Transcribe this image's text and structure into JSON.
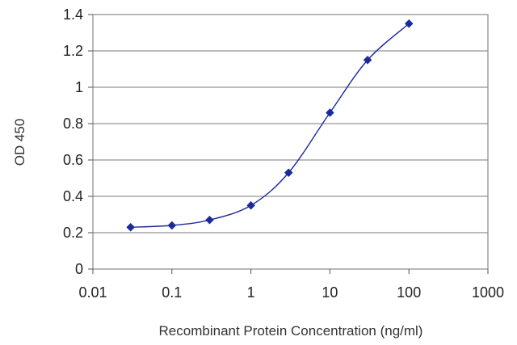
{
  "chart_data": {
    "type": "line",
    "title": "",
    "xlabel": "Recombinant Protein Concentration (ng/ml)",
    "ylabel": "OD 450",
    "x_scale": "log",
    "xlim": [
      0.01,
      1000
    ],
    "ylim": [
      0,
      1.4
    ],
    "x_ticks": [
      "0.01",
      "0.1",
      "1",
      "10",
      "100",
      "1000"
    ],
    "y_ticks": [
      "0",
      "0.2",
      "0.4",
      "0.6",
      "0.8",
      "1",
      "1.2",
      "1.4"
    ],
    "grid": "horizontal",
    "legend": "none",
    "series": [
      {
        "x": [
          0.03,
          0.1,
          0.3,
          1,
          3,
          10,
          30,
          100
        ],
        "y": [
          0.23,
          0.24,
          0.27,
          0.35,
          0.53,
          0.86,
          1.15,
          1.35
        ],
        "color": "#1a2a9a",
        "marker": "diamond"
      }
    ]
  }
}
